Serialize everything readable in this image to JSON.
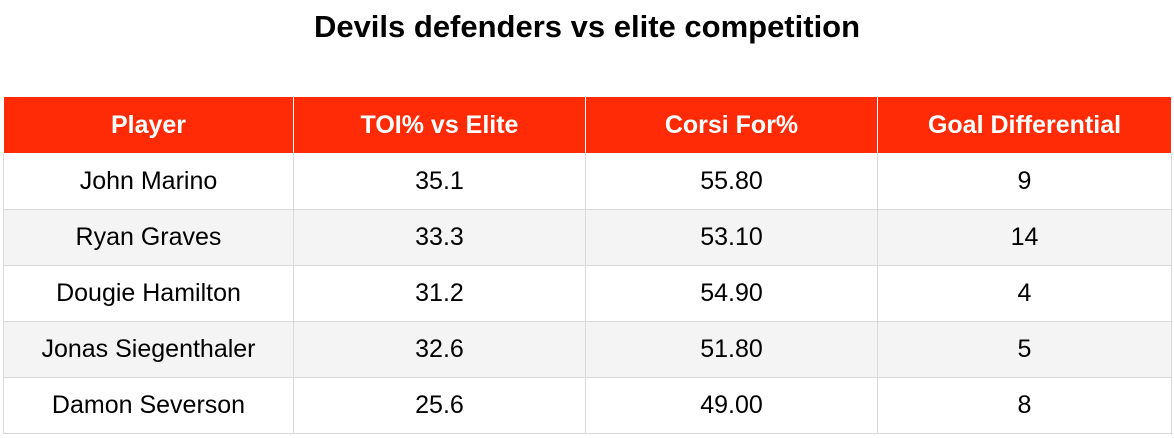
{
  "chart_data": {
    "type": "table",
    "title": "Devils defenders vs elite competition",
    "columns": [
      "Player",
      "TOI% vs Elite",
      "Corsi For%",
      "Goal Differential"
    ],
    "rows": [
      [
        "John Marino",
        "35.1",
        "55.80",
        "9"
      ],
      [
        "Ryan Graves",
        "33.3",
        "53.10",
        "14"
      ],
      [
        "Dougie Hamilton",
        "31.2",
        "54.90",
        "4"
      ],
      [
        "Jonas Siegenthaler",
        "32.6",
        "51.80",
        "5"
      ],
      [
        "Damon Severson",
        "25.6",
        "49.00",
        "8"
      ]
    ],
    "header_color": "#ff2b06",
    "header_text_color": "#ffffff",
    "stripe_color": "#f4f4f4"
  }
}
